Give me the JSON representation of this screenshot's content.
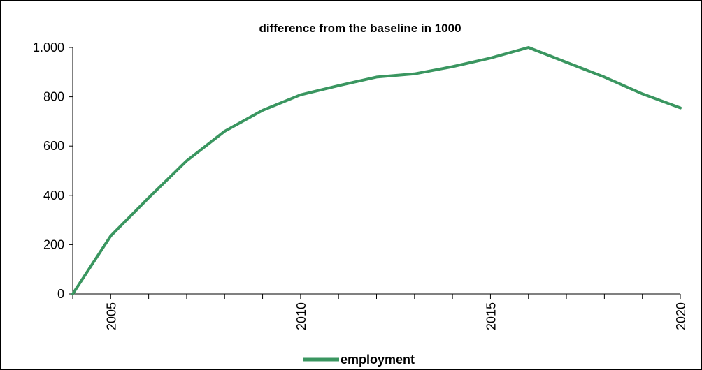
{
  "chart_data": {
    "type": "line",
    "title": "difference from the baseline in 1000",
    "xlabel": "",
    "ylabel": "",
    "xlim": [
      2004,
      2020
    ],
    "ylim": [
      0,
      1000
    ],
    "y_ticks": [
      0,
      200,
      400,
      600,
      800,
      1000
    ],
    "y_tick_labels": [
      "0",
      "200",
      "400",
      "600",
      "800",
      "1.000"
    ],
    "x_ticks": [
      2005,
      2010,
      2015,
      2020
    ],
    "x_tick_labels": [
      "2005",
      "2010",
      "2015",
      "2020"
    ],
    "x": [
      2004,
      2005,
      2006,
      2007,
      2008,
      2009,
      2010,
      2011,
      2012,
      2013,
      2014,
      2015,
      2016,
      2017,
      2018,
      2019,
      2020
    ],
    "series": [
      {
        "name": "employment",
        "color": "#3a9660",
        "values": [
          0,
          235,
          390,
          540,
          660,
          745,
          808,
          845,
          880,
          893,
          922,
          957,
          1000,
          940,
          880,
          812,
          755
        ]
      }
    ],
    "legend": "bottom-center",
    "grid": false
  }
}
